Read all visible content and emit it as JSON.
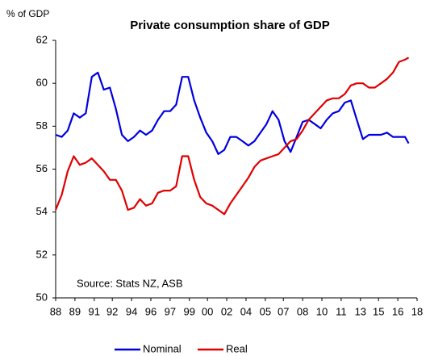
{
  "chart_data": {
    "type": "line",
    "title": "Private consumption share of GDP",
    "y_label": "% of GDP",
    "annotation": "Source: Stats NZ,  ASB",
    "x": [
      1988,
      1988.5,
      1989,
      1989.5,
      1990,
      1990.5,
      1991,
      1991.5,
      1992,
      1992.5,
      1993,
      1993.5,
      1994,
      1994.5,
      1995,
      1995.5,
      1996,
      1996.5,
      1997,
      1997.5,
      1998,
      1998.5,
      1999,
      1999.5,
      2000,
      2000.5,
      2001,
      2001.5,
      2002,
      2002.5,
      2003,
      2003.5,
      2004,
      2004.5,
      2005,
      2005.5,
      2006,
      2006.5,
      2007,
      2007.5,
      2008,
      2008.5,
      2009,
      2009.5,
      2010,
      2010.5,
      2011,
      2011.5,
      2012,
      2012.5,
      2013,
      2013.5,
      2014,
      2014.5,
      2015,
      2015.5,
      2016,
      2016.5,
      2017,
      2017.3
    ],
    "series": [
      {
        "name": "Nominal",
        "color": "#0000e0",
        "values": [
          57.6,
          57.5,
          57.8,
          58.6,
          58.4,
          58.6,
          60.3,
          60.5,
          59.7,
          59.8,
          58.8,
          57.6,
          57.3,
          57.5,
          57.8,
          57.6,
          57.8,
          58.3,
          58.7,
          58.7,
          59.0,
          60.3,
          60.3,
          59.2,
          58.4,
          57.7,
          57.3,
          56.7,
          56.9,
          57.5,
          57.5,
          57.3,
          57.1,
          57.3,
          57.7,
          58.1,
          58.7,
          58.3,
          57.3,
          56.8,
          57.5,
          58.2,
          58.3,
          58.1,
          57.9,
          58.3,
          58.6,
          58.7,
          59.1,
          59.2,
          58.3,
          57.4,
          57.6,
          57.6,
          57.6,
          57.7,
          57.5,
          57.5,
          57.5,
          57.2
        ]
      },
      {
        "name": "Real",
        "color": "#e00000",
        "values": [
          54.1,
          54.8,
          55.9,
          56.6,
          56.2,
          56.3,
          56.5,
          56.2,
          55.9,
          55.5,
          55.5,
          55.0,
          54.1,
          54.2,
          54.6,
          54.3,
          54.4,
          54.9,
          55.0,
          55.0,
          55.2,
          56.6,
          56.6,
          55.5,
          54.7,
          54.4,
          54.3,
          54.1,
          53.9,
          54.4,
          54.8,
          55.2,
          55.6,
          56.1,
          56.4,
          56.5,
          56.6,
          56.7,
          57.0,
          57.3,
          57.4,
          57.8,
          58.3,
          58.6,
          58.9,
          59.2,
          59.3,
          59.3,
          59.5,
          59.9,
          60.0,
          60.0,
          59.8,
          59.8,
          60.0,
          60.2,
          60.5,
          61.0,
          61.1,
          61.2
        ]
      }
    ],
    "xlim": [
      1988,
      2018
    ],
    "xticks": [
      {
        "value": 1988,
        "label": "88"
      },
      {
        "value": 1989.6,
        "label": "89"
      },
      {
        "value": 1991.2,
        "label": "91"
      },
      {
        "value": 1992.7,
        "label": "92"
      },
      {
        "value": 1994.3,
        "label": "94"
      },
      {
        "value": 1995.9,
        "label": "96"
      },
      {
        "value": 1997.5,
        "label": "97"
      },
      {
        "value": 1999.1,
        "label": "99"
      },
      {
        "value": 2000.6,
        "label": "00"
      },
      {
        "value": 2002.2,
        "label": "02"
      },
      {
        "value": 2003.8,
        "label": "04"
      },
      {
        "value": 2005.4,
        "label": "05"
      },
      {
        "value": 2006.9,
        "label": "07"
      },
      {
        "value": 2008.5,
        "label": "08"
      },
      {
        "value": 2010.1,
        "label": "10"
      },
      {
        "value": 2011.7,
        "label": "11"
      },
      {
        "value": 2013.3,
        "label": "13"
      },
      {
        "value": 2014.8,
        "label": "15"
      },
      {
        "value": 2016.4,
        "label": "16"
      },
      {
        "value": 2018,
        "label": "18"
      }
    ],
    "ylim": [
      50,
      62
    ],
    "yticks": [
      50,
      52,
      54,
      56,
      58,
      60,
      62
    ],
    "grid": false,
    "legend": "bottom"
  }
}
